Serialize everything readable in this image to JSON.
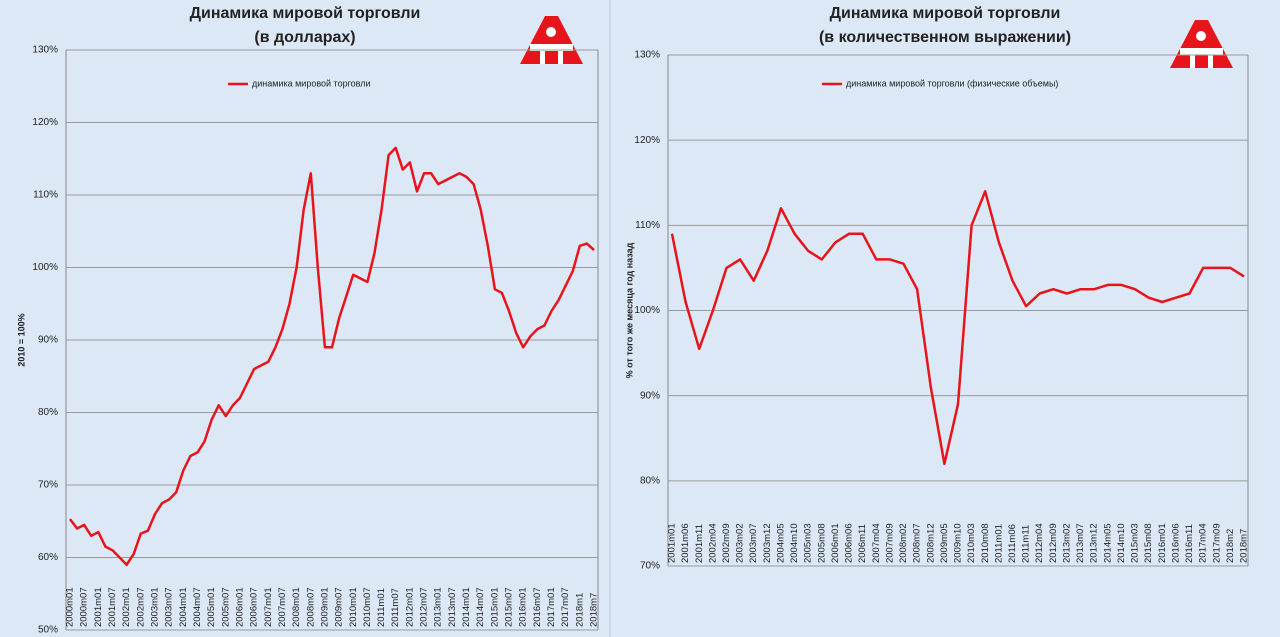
{
  "chart_data": [
    {
      "type": "line",
      "title": "Динамика мировой торговли",
      "subtitle": "(в долларах)",
      "y_label": "2010 = 100%",
      "categories": [
        "2000m01",
        null,
        "2000m07",
        null,
        "2001m01",
        null,
        "2001m07",
        null,
        "2002m01",
        null,
        "2002m07",
        null,
        "2003m01",
        null,
        "2003m07",
        null,
        "2004m01",
        null,
        "2004m07",
        null,
        "2005m01",
        null,
        "2005m07",
        null,
        "2006m01",
        null,
        "2006m07",
        null,
        "2007m01",
        null,
        "2007m07",
        null,
        "2008m01",
        null,
        "2008m07",
        null,
        "2009m01",
        null,
        "2009m07",
        null,
        "2010m01",
        null,
        "2010m07",
        null,
        "2011m01",
        null,
        "2011m07",
        null,
        "2012m01",
        null,
        "2012m07",
        null,
        "2013m01",
        null,
        "2013m07",
        null,
        "2014m01",
        null,
        "2014m07",
        null,
        "2015m01",
        null,
        "2015m07",
        null,
        "2016m01",
        null,
        "2016m07",
        null,
        "2017m01",
        null,
        "2017m07",
        null,
        "2018m1",
        null,
        "2018m7"
      ],
      "series": [
        {
          "name": "динамика мировой торговли",
          "color": "#e8141b",
          "values": [
            65.3,
            64,
            64.5,
            63,
            63.5,
            61.5,
            61,
            60,
            59,
            60.5,
            63.3,
            63.7,
            66,
            67.5,
            68,
            69,
            72,
            74,
            74.5,
            76,
            79,
            81,
            79.5,
            81,
            82,
            84,
            86,
            86.5,
            87,
            89,
            91.5,
            95,
            100,
            108,
            113,
            100,
            89,
            89,
            93,
            96,
            99,
            98.5,
            98,
            102,
            108,
            115.5,
            116.5,
            113.5,
            114.5,
            110.5,
            113,
            113,
            111.5,
            112,
            112.5,
            113,
            112.5,
            111.5,
            108,
            103,
            97,
            96.5,
            94,
            91,
            89,
            90.5,
            91.5,
            92,
            94,
            95.5,
            97.5,
            99.5,
            103,
            103.3,
            102.4
          ]
        }
      ],
      "ylim": [
        50,
        130
      ],
      "yticks": [
        {
          "value": 50,
          "label": "50%"
        },
        {
          "value": 60,
          "label": "60%"
        },
        {
          "value": 70,
          "label": "70%"
        },
        {
          "value": 80,
          "label": "80%"
        },
        {
          "value": 90,
          "label": "90%"
        },
        {
          "value": 100,
          "label": "100%"
        },
        {
          "value": 110,
          "label": "110%"
        },
        {
          "value": 120,
          "label": "120%"
        },
        {
          "value": 130,
          "label": "130%"
        }
      ],
      "grid": true
    },
    {
      "type": "line",
      "title": "Динамика мировой торговли",
      "subtitle": "(в количественном выражении)",
      "y_label": "% от того же месяца год назад",
      "categories": [
        "2001m01",
        "2001m06",
        "2001m11",
        "2002m04",
        "2002m09",
        "2003m02",
        "2003m07",
        "2003m12",
        "2004m05",
        "2004m10",
        "2005m03",
        "2005m08",
        "2006m01",
        "2006m06",
        "2006m11",
        "2007m04",
        "2007m09",
        "2008m02",
        "2008m07",
        "2008m12",
        "2009m05",
        "2009m10",
        "2010m03",
        "2010m08",
        "2011m01",
        "2011m06",
        "2011m11",
        "2012m04",
        "2012m09",
        "2013m02",
        "2013m07",
        "2013m12",
        "2014m05",
        "2014m10",
        "2015m03",
        "2015m08",
        "2016m01",
        "2016m06",
        "2016m11",
        "2017m04",
        "2017m09",
        "2018m2",
        "2018m7"
      ],
      "series": [
        {
          "name": "динамика мировой торговли (физические объемы)",
          "color": "#e8141b",
          "values": [
            109,
            101,
            95.5,
            100,
            105,
            106,
            103.5,
            107,
            112,
            109,
            107,
            106,
            108,
            109,
            109,
            106,
            106,
            105.5,
            102.5,
            91,
            82,
            89,
            110,
            114,
            108,
            103.5,
            100.5,
            102,
            102.5,
            102,
            102.5,
            102.5,
            103,
            103,
            102.5,
            101.5,
            101,
            101.5,
            102,
            105,
            105,
            105,
            104
          ]
        }
      ],
      "ylim": [
        70,
        130
      ],
      "yticks": [
        {
          "value": 70,
          "label": "70%"
        },
        {
          "value": 80,
          "label": "80%"
        },
        {
          "value": 90,
          "label": "90%"
        },
        {
          "value": 100,
          "label": "100%"
        },
        {
          "value": 110,
          "label": "110%"
        },
        {
          "value": 120,
          "label": "120%"
        },
        {
          "value": 130,
          "label": "130%"
        }
      ],
      "grid": true
    }
  ]
}
